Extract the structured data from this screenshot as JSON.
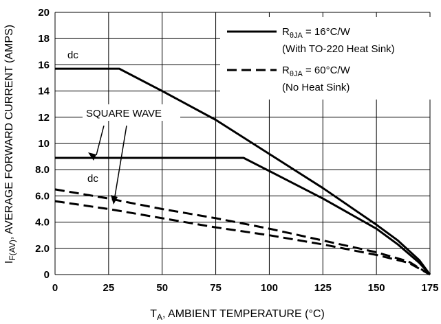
{
  "chart_data": {
    "type": "line",
    "xlabel": {
      "main": "T",
      "sub": "A",
      "rest": ", AMBIENT TEMPERATURE (°C)"
    },
    "ylabel": {
      "main": "I",
      "sub": "F(AV)",
      "rest": ", AVERAGE FORWARD CURRENT (AMPS)"
    },
    "xlim": [
      0,
      175
    ],
    "ylim": [
      0,
      20
    ],
    "x_ticks": [
      0,
      25,
      50,
      75,
      100,
      125,
      150,
      175
    ],
    "y_ticks": [
      0,
      2,
      4,
      6,
      8,
      10,
      12,
      14,
      16,
      18,
      20
    ],
    "y_tick_labels": [
      "0",
      "2.0",
      "4.0",
      "6.0",
      "8.0",
      "10",
      "12",
      "14",
      "16",
      "18",
      "20"
    ],
    "grid": true,
    "legend": {
      "position": "top-right",
      "entries": [
        {
          "style": "solid",
          "main": "R",
          "sub": "θJA",
          "rest": " = 16°C/W",
          "line2": "(With TO-220 Heat Sink)"
        },
        {
          "style": "dashed",
          "main": "R",
          "sub": "θJA",
          "rest": " = 60°C/W",
          "line2": "(No Heat Sink)"
        }
      ]
    },
    "series": [
      {
        "style": "solid",
        "x": [
          0,
          30,
          50,
          75,
          100,
          125,
          150,
          160,
          170,
          175
        ],
        "y": [
          15.7,
          15.7,
          14.0,
          11.8,
          9.2,
          6.6,
          3.8,
          2.6,
          1.1,
          0
        ]
      },
      {
        "style": "solid",
        "x": [
          0,
          88,
          100,
          125,
          150,
          160,
          170,
          175
        ],
        "y": [
          8.9,
          8.9,
          7.9,
          5.8,
          3.5,
          2.3,
          0.9,
          0
        ]
      },
      {
        "style": "dashed",
        "x": [
          0,
          25,
          50,
          75,
          100,
          125,
          150,
          165,
          175
        ],
        "y": [
          6.5,
          5.8,
          5.0,
          4.3,
          3.5,
          2.6,
          1.7,
          1.0,
          0
        ]
      },
      {
        "style": "dashed",
        "x": [
          0,
          25,
          50,
          75,
          100,
          125,
          150,
          165,
          175
        ],
        "y": [
          5.6,
          5.0,
          4.3,
          3.6,
          3.0,
          2.3,
          1.5,
          0.9,
          0
        ]
      }
    ],
    "annotations": {
      "dc_upper": "dc",
      "dc_lower": "dc",
      "square_wave": "SQUARE WAVE"
    }
  }
}
